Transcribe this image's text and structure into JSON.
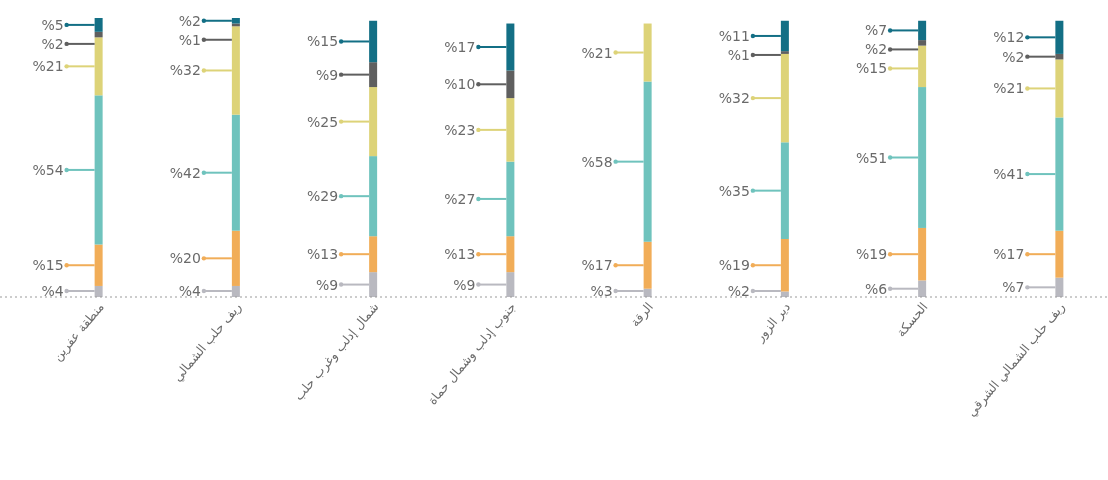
{
  "chart_data": {
    "type": "bar",
    "stacked": true,
    "categories": [
      "منطقة عفرين",
      "ريف حلب الشمالي",
      "شمال إدلب وغرب حلب",
      "جنوب إدلب وشمال حماة",
      "الرقة",
      "دير الزور",
      "الحسكة",
      "ريف حلب الشمالي الشرقي"
    ],
    "series": [
      {
        "color": "#b9b9c0",
        "values": [
          4,
          4,
          9,
          9,
          3,
          2,
          6,
          7
        ],
        "value_labels": [
          "%4",
          "%4",
          "%9",
          "%9",
          "%3",
          "%2",
          "%6",
          "%7"
        ]
      },
      {
        "color": "#f1ad58",
        "values": [
          15,
          20,
          13,
          13,
          17,
          19,
          19,
          17
        ],
        "value_labels": [
          "%15",
          "%20",
          "%13",
          "%13",
          "%17",
          "%19",
          "%19",
          "%17"
        ]
      },
      {
        "color": "#6fc3bd",
        "values": [
          54,
          42,
          29,
          27,
          58,
          35,
          51,
          41
        ],
        "value_labels": [
          "%54",
          "%42",
          "%29",
          "%27",
          "%58",
          "%35",
          "%51",
          "%41"
        ]
      },
      {
        "color": "#ddd378",
        "values": [
          21,
          32,
          25,
          23,
          21,
          32,
          15,
          21
        ],
        "value_labels": [
          "%21",
          "%32",
          "%25",
          "%23",
          "%21",
          "%32",
          "%15",
          "%21"
        ]
      },
      {
        "color": "#5f5f5f",
        "values": [
          2,
          1,
          9,
          10,
          null,
          1,
          2,
          2
        ],
        "value_labels": [
          "%2",
          "%1",
          "%9",
          "%10",
          null,
          "%1",
          "%2",
          "%2"
        ]
      },
      {
        "color": "#136f85",
        "values": [
          5,
          2,
          15,
          17,
          null,
          11,
          7,
          12
        ],
        "value_labels": [
          "%5",
          "%2",
          "%15",
          "%17",
          null,
          "%11",
          "%7",
          "%12"
        ]
      }
    ]
  }
}
